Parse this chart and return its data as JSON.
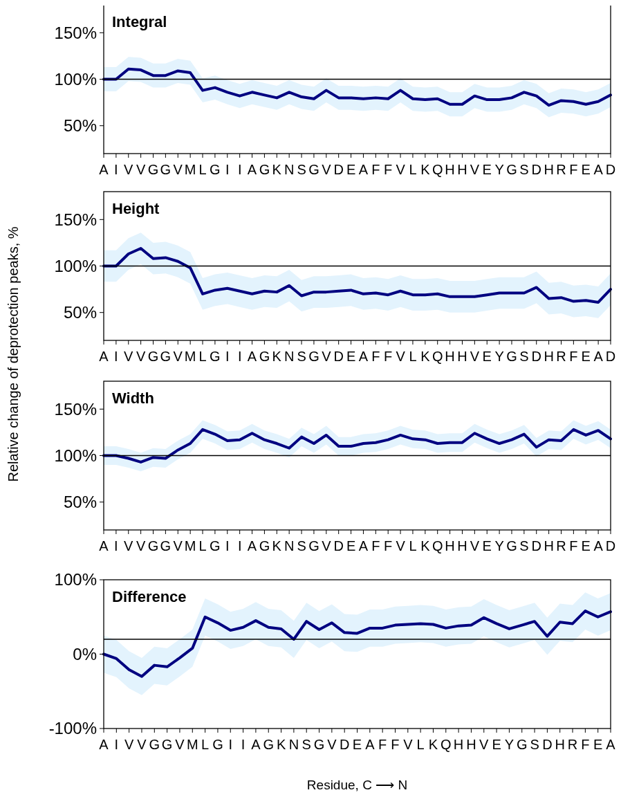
{
  "chart_data": [
    {
      "type": "line",
      "title": "Integral",
      "categories": [
        "A",
        "I",
        "V",
        "V",
        "G",
        "G",
        "V",
        "M",
        "L",
        "G",
        "I",
        "I",
        "A",
        "G",
        "K",
        "N",
        "S",
        "G",
        "V",
        "D",
        "E",
        "A",
        "F",
        "F",
        "V",
        "L",
        "K",
        "Q",
        "H",
        "H",
        "V",
        "E",
        "Y",
        "G",
        "S",
        "D",
        "H",
        "R",
        "F",
        "E",
        "A",
        "D"
      ],
      "ylim": [
        20,
        180
      ],
      "yticks": [
        {
          "value": 50,
          "label": "50%"
        },
        {
          "value": 100,
          "label": "100%"
        },
        {
          "value": 150,
          "label": "150%"
        }
      ],
      "ref_lines": [
        {
          "axis": "y",
          "value": 100,
          "color": "#000000"
        }
      ],
      "series": [
        {
          "color": "#000080",
          "values": [
            100,
            100,
            111,
            110,
            104,
            104,
            109,
            107,
            88,
            91,
            86,
            82,
            86,
            83,
            80,
            86,
            81,
            79,
            88,
            80,
            80,
            79,
            80,
            79,
            88,
            79,
            78,
            79,
            73,
            73,
            82,
            78,
            78,
            80,
            86,
            82,
            72,
            77,
            76,
            73,
            76,
            83
          ],
          "lower": [
            87,
            87,
            98,
            97,
            91,
            91,
            96,
            94,
            75,
            78,
            73,
            69,
            73,
            70,
            67,
            73,
            68,
            66,
            75,
            67,
            67,
            66,
            67,
            66,
            75,
            66,
            65,
            66,
            60,
            60,
            69,
            65,
            65,
            67,
            73,
            69,
            59,
            64,
            63,
            60,
            63,
            70
          ],
          "upper": [
            113,
            113,
            124,
            123,
            117,
            117,
            122,
            120,
            101,
            104,
            99,
            95,
            99,
            96,
            93,
            99,
            94,
            92,
            101,
            93,
            93,
            92,
            93,
            92,
            101,
            92,
            91,
            92,
            86,
            86,
            95,
            91,
            91,
            93,
            99,
            95,
            85,
            90,
            89,
            86,
            89,
            96
          ]
        }
      ]
    },
    {
      "type": "line",
      "title": "Height",
      "ylabel": "Relative change of deprotection peaks, %",
      "categories": [
        "A",
        "I",
        "V",
        "V",
        "G",
        "G",
        "V",
        "M",
        "L",
        "G",
        "I",
        "I",
        "A",
        "G",
        "K",
        "N",
        "S",
        "G",
        "V",
        "D",
        "E",
        "A",
        "F",
        "F",
        "V",
        "L",
        "K",
        "Q",
        "H",
        "H",
        "V",
        "E",
        "Y",
        "G",
        "S",
        "D",
        "H",
        "R",
        "F",
        "E",
        "A",
        "D"
      ],
      "ylim": [
        20,
        180
      ],
      "yticks": [
        {
          "value": 50,
          "label": "50%"
        },
        {
          "value": 100,
          "label": "100%"
        },
        {
          "value": 150,
          "label": "150%"
        }
      ],
      "ref_lines": [
        {
          "axis": "y",
          "value": 100,
          "color": "#000000"
        }
      ],
      "series": [
        {
          "color": "#000080",
          "values": [
            100,
            100,
            113,
            119,
            108,
            109,
            105,
            98,
            70,
            74,
            76,
            73,
            70,
            73,
            72,
            79,
            68,
            72,
            72,
            73,
            74,
            70,
            71,
            69,
            73,
            69,
            69,
            70,
            67,
            67,
            67,
            69,
            71,
            71,
            71,
            77,
            65,
            66,
            62,
            63,
            61,
            75
          ],
          "lower": [
            83,
            83,
            96,
            102,
            91,
            92,
            88,
            81,
            53,
            57,
            59,
            56,
            53,
            56,
            55,
            62,
            51,
            55,
            55,
            56,
            57,
            53,
            54,
            52,
            56,
            52,
            52,
            53,
            50,
            50,
            50,
            52,
            54,
            54,
            54,
            60,
            48,
            49,
            45,
            46,
            44,
            58
          ],
          "upper": [
            117,
            117,
            130,
            136,
            125,
            126,
            122,
            115,
            87,
            91,
            93,
            90,
            87,
            90,
            89,
            96,
            85,
            89,
            89,
            90,
            91,
            87,
            88,
            86,
            90,
            86,
            86,
            87,
            84,
            84,
            84,
            86,
            88,
            88,
            88,
            94,
            82,
            83,
            79,
            80,
            78,
            92
          ]
        }
      ]
    },
    {
      "type": "line",
      "title": "Width",
      "categories": [
        "A",
        "I",
        "V",
        "V",
        "G",
        "G",
        "V",
        "M",
        "L",
        "G",
        "I",
        "I",
        "A",
        "G",
        "K",
        "N",
        "S",
        "G",
        "V",
        "D",
        "E",
        "A",
        "F",
        "F",
        "V",
        "L",
        "K",
        "Q",
        "H",
        "H",
        "V",
        "E",
        "Y",
        "G",
        "S",
        "D",
        "H",
        "R",
        "F",
        "E",
        "A",
        "D"
      ],
      "ylim": [
        20,
        180
      ],
      "yticks": [
        {
          "value": 50,
          "label": "50%"
        },
        {
          "value": 100,
          "label": "100%"
        },
        {
          "value": 150,
          "label": "150%"
        }
      ],
      "ref_lines": [
        {
          "axis": "y",
          "value": 100,
          "color": "#000000"
        }
      ],
      "series": [
        {
          "color": "#000080",
          "values": [
            100,
            100,
            97,
            93,
            98,
            97,
            106,
            113,
            128,
            123,
            116,
            117,
            124,
            117,
            113,
            108,
            120,
            113,
            122,
            110,
            110,
            113,
            114,
            117,
            122,
            118,
            117,
            113,
            114,
            114,
            124,
            118,
            113,
            117,
            123,
            109,
            117,
            116,
            128,
            122,
            127,
            118
          ],
          "lower": [
            90,
            90,
            87,
            83,
            88,
            87,
            96,
            103,
            118,
            113,
            106,
            107,
            114,
            107,
            103,
            98,
            110,
            103,
            112,
            100,
            100,
            103,
            104,
            107,
            112,
            108,
            107,
            103,
            104,
            104,
            114,
            108,
            103,
            107,
            113,
            99,
            107,
            106,
            118,
            112,
            117,
            108
          ],
          "upper": [
            110,
            110,
            107,
            103,
            108,
            107,
            116,
            123,
            138,
            133,
            126,
            127,
            134,
            127,
            123,
            118,
            130,
            123,
            132,
            120,
            120,
            123,
            124,
            127,
            132,
            128,
            127,
            123,
            124,
            124,
            134,
            128,
            123,
            127,
            133,
            119,
            127,
            126,
            138,
            132,
            137,
            128
          ]
        }
      ]
    },
    {
      "type": "line",
      "title": "Difference",
      "xlabel": "Residue, C ⟶ N",
      "categories": [
        "A",
        "I",
        "V",
        "V",
        "G",
        "G",
        "V",
        "M",
        "L",
        "G",
        "I",
        "I",
        "A",
        "G",
        "K",
        "N",
        "S",
        "G",
        "V",
        "D",
        "E",
        "A",
        "F",
        "F",
        "V",
        "L",
        "K",
        "Q",
        "H",
        "H",
        "V",
        "E",
        "Y",
        "G",
        "S",
        "D",
        "H",
        "R",
        "F",
        "E",
        "A"
      ],
      "ylim": [
        -100,
        100
      ],
      "yticks": [
        {
          "value": -100,
          "label": "-100%"
        },
        {
          "value": 0,
          "label": "0%"
        },
        {
          "value": 100,
          "label": "100%"
        }
      ],
      "ref_lines": [
        {
          "axis": "y",
          "value": 20,
          "color": "#000000"
        }
      ],
      "series": [
        {
          "color": "#000080",
          "values": [
            0,
            -6,
            -21,
            -30,
            -15,
            -17,
            -5,
            8,
            50,
            42,
            32,
            36,
            45,
            36,
            34,
            20,
            44,
            33,
            42,
            29,
            28,
            35,
            35,
            39,
            40,
            41,
            40,
            35,
            38,
            39,
            49,
            41,
            34,
            39,
            44,
            24,
            43,
            41,
            58,
            50,
            57
          ],
          "lower": [
            -25,
            -31,
            -46,
            -55,
            -40,
            -42,
            -30,
            -17,
            25,
            17,
            7,
            11,
            20,
            11,
            9,
            -5,
            19,
            8,
            17,
            4,
            3,
            10,
            10,
            14,
            15,
            16,
            15,
            10,
            13,
            14,
            24,
            16,
            9,
            14,
            19,
            -1,
            18,
            16,
            33,
            25,
            32
          ],
          "upper": [
            25,
            19,
            4,
            -5,
            10,
            8,
            20,
            33,
            75,
            67,
            57,
            61,
            70,
            61,
            59,
            45,
            69,
            58,
            67,
            54,
            53,
            60,
            60,
            64,
            65,
            66,
            65,
            60,
            63,
            64,
            74,
            66,
            59,
            64,
            69,
            49,
            68,
            66,
            83,
            75,
            82
          ]
        }
      ]
    }
  ]
}
